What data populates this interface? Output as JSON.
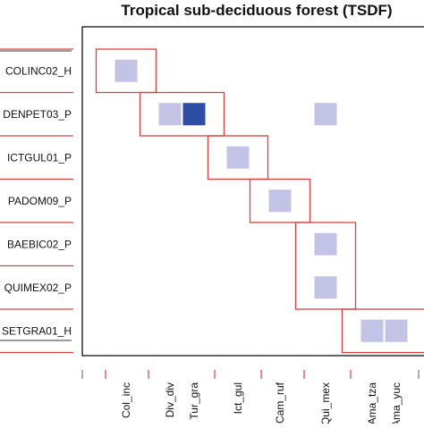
{
  "chart_data": {
    "type": "heatmap",
    "title": "Tropical sub-deciduous forest (TSDF)",
    "rows": [
      "COLINC02_H",
      "DENPET03_P",
      "ICTGUL01_P",
      "PADOM09_P",
      "BAEBIC02_P",
      "QUIMEX02_P",
      "SETGRA01_H"
    ],
    "columns": [
      "Col_inc",
      "Div_div",
      "Tur_gra",
      "Ict_gul",
      "Cam_ruf",
      "Qui_mex",
      "Ama_tza",
      "Ama_yuc"
    ],
    "cells": [
      {
        "row": "COLINC02_H",
        "col": "Col_inc",
        "value": 1
      },
      {
        "row": "DENPET03_P",
        "col": "Div_div",
        "value": 1
      },
      {
        "row": "DENPET03_P",
        "col": "Tur_gra",
        "value": 2
      },
      {
        "row": "DENPET03_P",
        "col": "Qui_mex",
        "value": 1
      },
      {
        "row": "ICTGUL01_P",
        "col": "Ict_gul",
        "value": 1
      },
      {
        "row": "PADOM09_P",
        "col": "Cam_ruf",
        "value": 1
      },
      {
        "row": "BAEBIC02_P",
        "col": "Qui_mex",
        "value": 1
      },
      {
        "row": "QUIMEX02_P",
        "col": "Qui_mex",
        "value": 1
      },
      {
        "row": "SETGRA01_H",
        "col": "Ama_tza",
        "value": 1
      },
      {
        "row": "SETGRA01_H",
        "col": "Ama_yuc",
        "value": 1
      }
    ],
    "modules": [
      {
        "rows": [
          "COLINC02_H"
        ],
        "cols": [
          "Col_inc"
        ]
      },
      {
        "rows": [
          "DENPET03_P"
        ],
        "cols": [
          "Div_div",
          "Tur_gra"
        ]
      },
      {
        "rows": [
          "ICTGUL01_P"
        ],
        "cols": [
          "Ict_gul"
        ]
      },
      {
        "rows": [
          "PADOM09_P"
        ],
        "cols": [
          "Cam_ruf"
        ]
      },
      {
        "rows": [
          "BAEBIC02_P",
          "QUIMEX02_P"
        ],
        "cols": [
          "Qui_mex"
        ]
      },
      {
        "rows": [
          "SETGRA01_H"
        ],
        "cols": [
          "Ama_tza",
          "Ama_yuc"
        ]
      }
    ],
    "colors": {
      "low": "#c3c3e6",
      "high": "#2d4ea7",
      "module": "#d94040",
      "tick": "#d94040",
      "frame": "#111111"
    },
    "grid": false,
    "legend": "none"
  }
}
